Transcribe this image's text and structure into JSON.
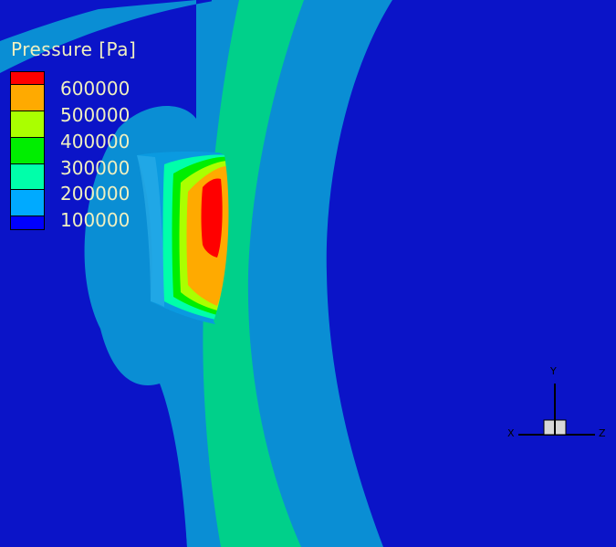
{
  "legend": {
    "title": "Pressure [Pa]",
    "levels": [
      {
        "label": "600000",
        "color": "#ff0000"
      },
      {
        "label": "500000",
        "color": "#ffaa00"
      },
      {
        "label": "400000",
        "color": "#aaff00"
      },
      {
        "label": "300000",
        "color": "#00ee00"
      },
      {
        "label": "200000",
        "color": "#00ffaa"
      },
      {
        "label": "100000",
        "color": "#00aaff"
      },
      {
        "label": "",
        "color": "#0000ff"
      }
    ]
  },
  "axes": {
    "x": "X",
    "y": "Y",
    "z": "Z"
  },
  "colors": {
    "background": "#0b14c8",
    "band_light_blue": "#0a8ed4",
    "band_green": "#00d08a"
  }
}
